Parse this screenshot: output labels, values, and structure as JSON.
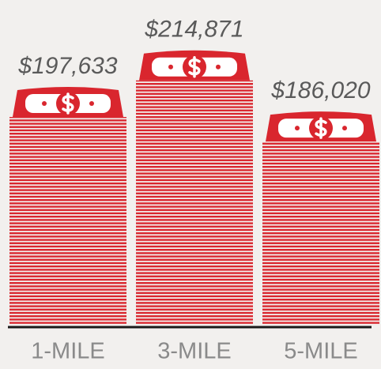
{
  "chart_data": {
    "type": "bar",
    "categories": [
      "1-MILE",
      "3-MILE",
      "5-MILE"
    ],
    "values": [
      197633,
      214871,
      186020
    ],
    "value_labels": [
      "$197,633",
      "$214,871",
      "$186,020"
    ],
    "color": "#d9262e",
    "ylim": [
      100000,
      220000
    ]
  }
}
